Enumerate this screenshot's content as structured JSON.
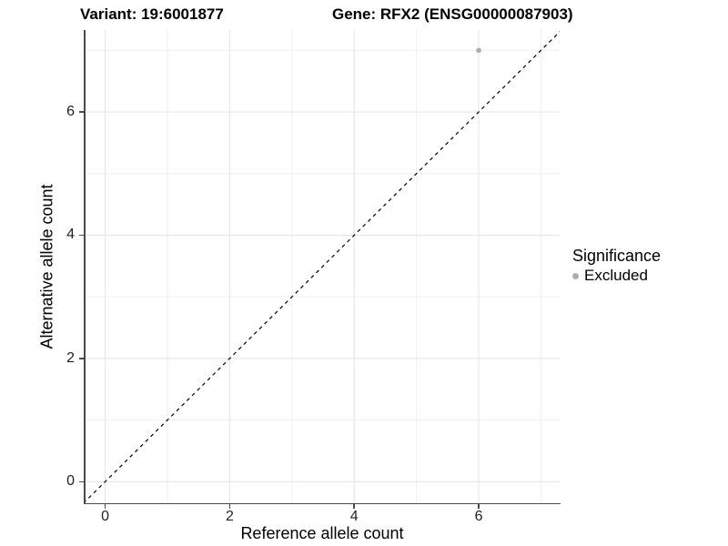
{
  "chart_data": {
    "type": "scatter",
    "title_left": "Variant: 19:6001877",
    "title_right": "Gene: RFX2 (ENSG00000087903)",
    "xlabel": "Reference allele count",
    "ylabel": "Alternative allele count",
    "xlim": [
      -0.33,
      7.3
    ],
    "ylim": [
      -0.35,
      7.33
    ],
    "x_ticks": [
      0,
      2,
      4,
      6
    ],
    "y_ticks": [
      0,
      2,
      4,
      6
    ],
    "x_minor": [
      1,
      3,
      5,
      7
    ],
    "y_minor": [
      1,
      3,
      5,
      7
    ],
    "grid": true,
    "legend_position": "right",
    "identity_line": {
      "type": "abline",
      "slope": 1,
      "intercept": 0,
      "style": "dashed",
      "color": "#000000",
      "from": [
        -0.35,
        -0.35
      ],
      "to": [
        7.35,
        7.35
      ]
    },
    "series": [
      {
        "name": "Excluded",
        "color": "#ADADAD",
        "points": [
          {
            "x": 6,
            "y": 7
          }
        ]
      }
    ],
    "legend": {
      "title": "Significance",
      "items": [
        {
          "label": "Excluded",
          "color": "#ADADAD"
        }
      ]
    }
  },
  "colors": {
    "background": "#FFFFFF",
    "axis_line": "#4A4A4A",
    "grid_major": "#E4E4E4",
    "grid_minor": "#F0F0F0",
    "tick_label": "#1F1F1F",
    "text": "#000000"
  }
}
